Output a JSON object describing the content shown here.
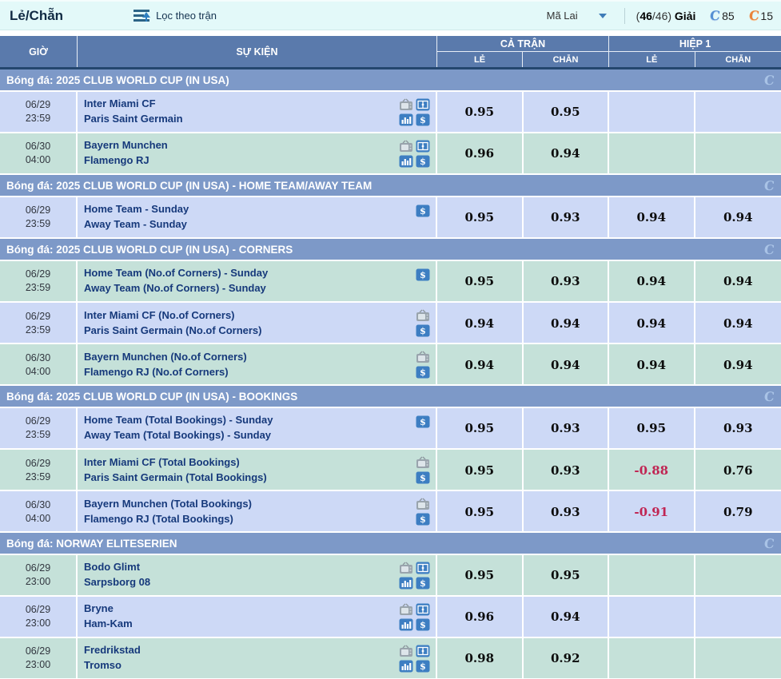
{
  "topbar": {
    "title": "Lẻ/Chẵn",
    "filter_label": "Lọc theo trận",
    "odds_type": "Mã Lai",
    "count_open": "(",
    "count_current": "46",
    "count_rest": "/46)",
    "league_label": "Giải",
    "blue_count": "85",
    "orange_count": "15"
  },
  "table_header": {
    "time": "GIỜ",
    "event": "SỰ KIỆN",
    "full_match": "CẢ TRẬN",
    "half1": "HIỆP 1",
    "odd": "LẺ",
    "even": "CHẴN"
  },
  "colors": {
    "topbar_bg": "#e3f9f9",
    "header_bg": "#5a7aac",
    "section_bg": "#7d99c8",
    "row_blue": "#cdd9f6",
    "row_green": "#c5e1d9",
    "team_text": "#16397b",
    "negative_odds": "#c02553",
    "badge_blue": "#5590d3",
    "badge_orange": "#e8833b"
  },
  "sections": [
    {
      "title": "Bóng đá: 2025 CLUB WORLD CUP (IN USA)",
      "rows": [
        {
          "date": "06/29",
          "time": "23:59",
          "home": "Inter Miami CF",
          "away": "Paris Saint Germain",
          "icons": [
            "tv",
            "live-center",
            "stats-chart",
            "dollar"
          ],
          "variant": "blue",
          "ft_odd": "0.95",
          "ft_even": "0.95",
          "h1_odd": "",
          "h1_even": ""
        },
        {
          "date": "06/30",
          "time": "04:00",
          "home": "Bayern Munchen",
          "away": "Flamengo RJ",
          "icons": [
            "tv",
            "live-center",
            "stats-chart",
            "dollar"
          ],
          "variant": "green",
          "ft_odd": "0.96",
          "ft_even": "0.94",
          "h1_odd": "",
          "h1_even": ""
        }
      ]
    },
    {
      "title": "Bóng đá: 2025 CLUB WORLD CUP (IN USA) - HOME TEAM/AWAY TEAM",
      "rows": [
        {
          "date": "06/29",
          "time": "23:59",
          "home": "Home Team - Sunday",
          "away": "Away Team - Sunday",
          "icons": [
            "dollar"
          ],
          "variant": "blue",
          "ft_odd": "0.95",
          "ft_even": "0.93",
          "h1_odd": "0.94",
          "h1_even": "0.94"
        }
      ]
    },
    {
      "title": "Bóng đá: 2025 CLUB WORLD CUP (IN USA) - CORNERS",
      "rows": [
        {
          "date": "06/29",
          "time": "23:59",
          "home": "Home Team (No.of Corners) - Sunday",
          "away": "Away Team (No.of Corners) - Sunday",
          "icons": [
            "dollar"
          ],
          "variant": "green",
          "ft_odd": "0.95",
          "ft_even": "0.93",
          "h1_odd": "0.94",
          "h1_even": "0.94"
        },
        {
          "date": "06/29",
          "time": "23:59",
          "home": "Inter Miami CF (No.of Corners)",
          "away": "Paris Saint Germain (No.of Corners)",
          "icons": [
            "tv",
            "dollar"
          ],
          "variant": "blue",
          "ft_odd": "0.94",
          "ft_even": "0.94",
          "h1_odd": "0.94",
          "h1_even": "0.94"
        },
        {
          "date": "06/30",
          "time": "04:00",
          "home": "Bayern Munchen (No.of Corners)",
          "away": "Flamengo RJ (No.of Corners)",
          "icons": [
            "tv",
            "dollar"
          ],
          "variant": "green",
          "ft_odd": "0.94",
          "ft_even": "0.94",
          "h1_odd": "0.94",
          "h1_even": "0.94"
        }
      ]
    },
    {
      "title": "Bóng đá: 2025 CLUB WORLD CUP (IN USA) - BOOKINGS",
      "rows": [
        {
          "date": "06/29",
          "time": "23:59",
          "home": "Home Team (Total Bookings) - Sunday",
          "away": "Away Team (Total Bookings) - Sunday",
          "icons": [
            "dollar"
          ],
          "variant": "blue",
          "ft_odd": "0.95",
          "ft_even": "0.93",
          "h1_odd": "0.95",
          "h1_even": "0.93"
        },
        {
          "date": "06/29",
          "time": "23:59",
          "home": "Inter Miami CF (Total Bookings)",
          "away": "Paris Saint Germain (Total Bookings)",
          "icons": [
            "tv",
            "dollar"
          ],
          "variant": "green",
          "ft_odd": "0.95",
          "ft_even": "0.93",
          "h1_odd": "-0.88",
          "h1_even": "0.76"
        },
        {
          "date": "06/30",
          "time": "04:00",
          "home": "Bayern Munchen (Total Bookings)",
          "away": "Flamengo RJ (Total Bookings)",
          "icons": [
            "tv",
            "dollar"
          ],
          "variant": "blue",
          "ft_odd": "0.95",
          "ft_even": "0.93",
          "h1_odd": "-0.91",
          "h1_even": "0.79"
        }
      ]
    },
    {
      "title": "Bóng đá: NORWAY ELITESERIEN",
      "rows": [
        {
          "date": "06/29",
          "time": "23:00",
          "home": "Bodo Glimt",
          "away": "Sarpsborg 08",
          "icons": [
            "tv",
            "live-center",
            "stats-chart",
            "dollar"
          ],
          "variant": "green",
          "ft_odd": "0.95",
          "ft_even": "0.95",
          "h1_odd": "",
          "h1_even": ""
        },
        {
          "date": "06/29",
          "time": "23:00",
          "home": "Bryne",
          "away": "Ham-Kam",
          "icons": [
            "tv",
            "live-center",
            "stats-chart",
            "dollar"
          ],
          "variant": "blue",
          "ft_odd": "0.96",
          "ft_even": "0.94",
          "h1_odd": "",
          "h1_even": ""
        },
        {
          "date": "06/29",
          "time": "23:00",
          "home": "Fredrikstad",
          "away": "Tromso",
          "icons": [
            "tv",
            "live-center",
            "stats-chart",
            "dollar"
          ],
          "variant": "green",
          "ft_odd": "0.98",
          "ft_even": "0.92",
          "h1_odd": "",
          "h1_even": ""
        }
      ]
    }
  ]
}
